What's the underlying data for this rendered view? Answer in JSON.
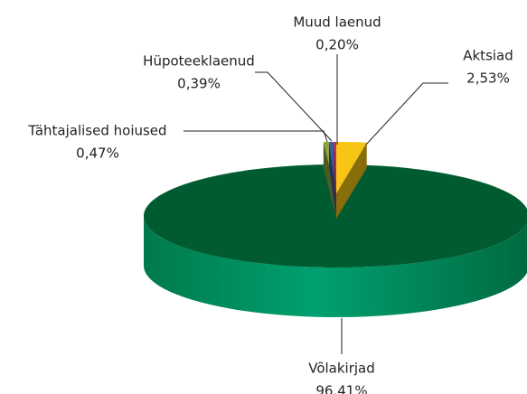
{
  "chart_data": {
    "type": "pie3d",
    "categories": [
      "Aktsiad",
      "Võlakirjad",
      "Tähtajalised hoiused",
      "Hüpoteeklaenud",
      "Muud laenud"
    ],
    "values": [
      2.53,
      96.41,
      0.47,
      0.39,
      0.2
    ],
    "value_labels": [
      "2,53%",
      "96.41%",
      "0,47%",
      "0,39%",
      "0,20%"
    ],
    "colors": [
      "#f7c614",
      "#005c30",
      "#8ca53c",
      "#3d5ca0",
      "#c4285e"
    ]
  }
}
